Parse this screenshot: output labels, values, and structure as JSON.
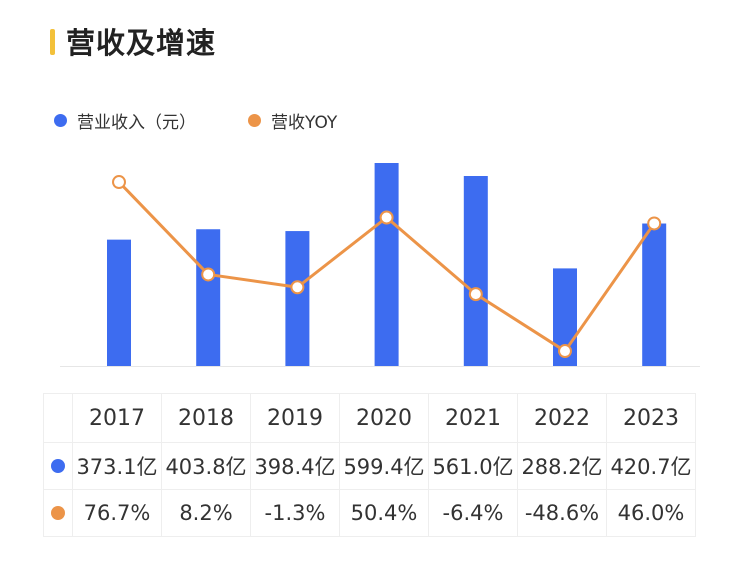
{
  "title": "营收及增速",
  "colors": {
    "accent": "#f3c13a",
    "revenue": "#3d6cf0",
    "yoy": "#ec9448"
  },
  "chart_data": {
    "type": "bar+line",
    "title": "营收及增速",
    "categories": [
      "2017",
      "2018",
      "2019",
      "2020",
      "2021",
      "2022",
      "2023"
    ],
    "series": [
      {
        "name": "营业收入（元）",
        "type": "bar",
        "values": [
          373.1,
          403.8,
          398.4,
          599.4,
          561.0,
          288.2,
          420.7
        ],
        "labels": [
          "373.1亿",
          "403.8亿",
          "398.4亿",
          "599.4亿",
          "561.0亿",
          "288.2亿",
          "420.7亿"
        ]
      },
      {
        "name": "营收YOY",
        "type": "line",
        "values": [
          76.7,
          8.2,
          -1.3,
          50.4,
          -6.4,
          -48.6,
          46.0
        ],
        "labels": [
          "76.7%",
          "8.2%",
          "-1.3%",
          "50.4%",
          "-6.4%",
          "-48.6%",
          "46.0%"
        ]
      }
    ],
    "legend": "top-left",
    "grid": false
  }
}
